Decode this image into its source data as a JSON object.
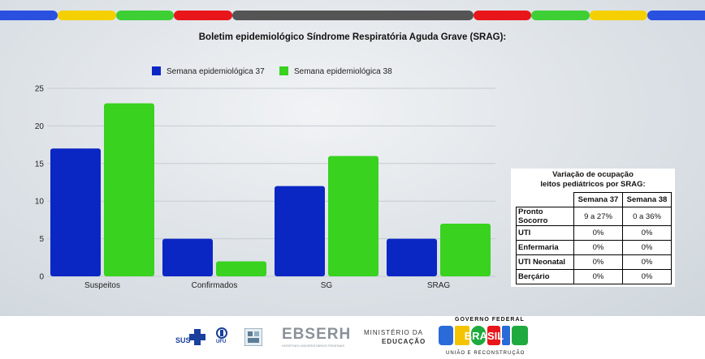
{
  "title": "Boletim epidemiológico Síndrome Respiratória Aguda Grave (SRAG):",
  "stripe_colors": [
    "#2a50e0",
    "#f5d000",
    "#3ecf35",
    "#e8161b",
    "#545454",
    "#e8161b",
    "#3ecf35",
    "#f5d000",
    "#2a50e0"
  ],
  "chart_data": {
    "type": "bar",
    "categories": [
      "Suspeitos",
      "Confirmados",
      "SG",
      "SRAG"
    ],
    "series": [
      {
        "name": "Semana epidemiológica 37",
        "color": "#0a27c4",
        "values": [
          17,
          5,
          12,
          5
        ]
      },
      {
        "name": "Semana epidemiológica 38",
        "color": "#38d21f",
        "values": [
          23,
          2,
          16,
          7
        ]
      }
    ],
    "ylim": [
      0,
      25
    ],
    "yticks": [
      0,
      5,
      10,
      15,
      20,
      25
    ],
    "grid": true,
    "legend": "top-left"
  },
  "occupancy_table": {
    "title_line1": "Variação de ocupação",
    "title_line2": "leitos pediátricos por SRAG:",
    "headers": [
      "Semana 37",
      "Semana 38"
    ],
    "rows": [
      {
        "label": "Pronto Socorro",
        "w37": "9 a 27%",
        "w38": "0 a 36%"
      },
      {
        "label": "UTI",
        "w37": "0%",
        "w38": "0%"
      },
      {
        "label": "Enfermaria",
        "w37": "0%",
        "w38": "0%"
      },
      {
        "label": "UTI Neonatal",
        "w37": "0%",
        "w38": "0%"
      },
      {
        "label": "Berçário",
        "w37": "0%",
        "w38": "0%"
      }
    ]
  },
  "footer": {
    "sus": "SUS",
    "ufu": "UFU",
    "ebserh": "EBSERH",
    "ebserh_sub": "HOSPITAIS UNIVERSITÁRIOS FEDERAIS",
    "ministerio_line1": "MINISTÉRIO DA",
    "ministerio_line2": "EDUCAÇÃO",
    "gov_federal": "GOVERNO FEDERAL",
    "brasil": "BRASIL",
    "slogan": "UNIÃO E RECONSTRUÇÃO"
  }
}
